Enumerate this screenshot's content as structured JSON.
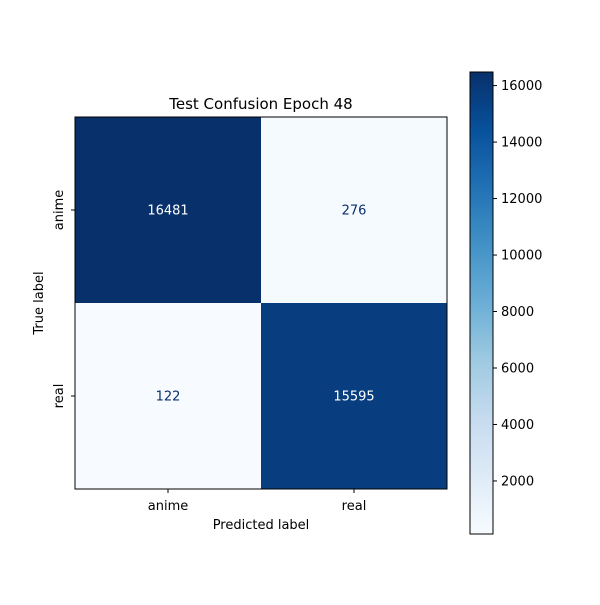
{
  "chart_data": {
    "type": "heatmap",
    "title": "Test Confusion Epoch 48",
    "xlabel": "Predicted label",
    "ylabel": "True label",
    "x_categories": [
      "anime",
      "real"
    ],
    "y_categories": [
      "anime",
      "real"
    ],
    "values": [
      [
        16481,
        276
      ],
      [
        122,
        15595
      ]
    ],
    "colormap": "Blues",
    "colorbar": {
      "range": [
        122,
        16481
      ],
      "ticks": [
        2000,
        4000,
        6000,
        8000,
        10000,
        12000,
        14000,
        16000
      ],
      "tick_labels": [
        "2000",
        "4000",
        "6000",
        "8000",
        "10000",
        "12000",
        "14000",
        "16000"
      ]
    },
    "colors": {
      "low": "#f7fbff",
      "high": "#08306b",
      "text_on_dark": "#ffffff",
      "text_on_light": "#08306b"
    }
  }
}
